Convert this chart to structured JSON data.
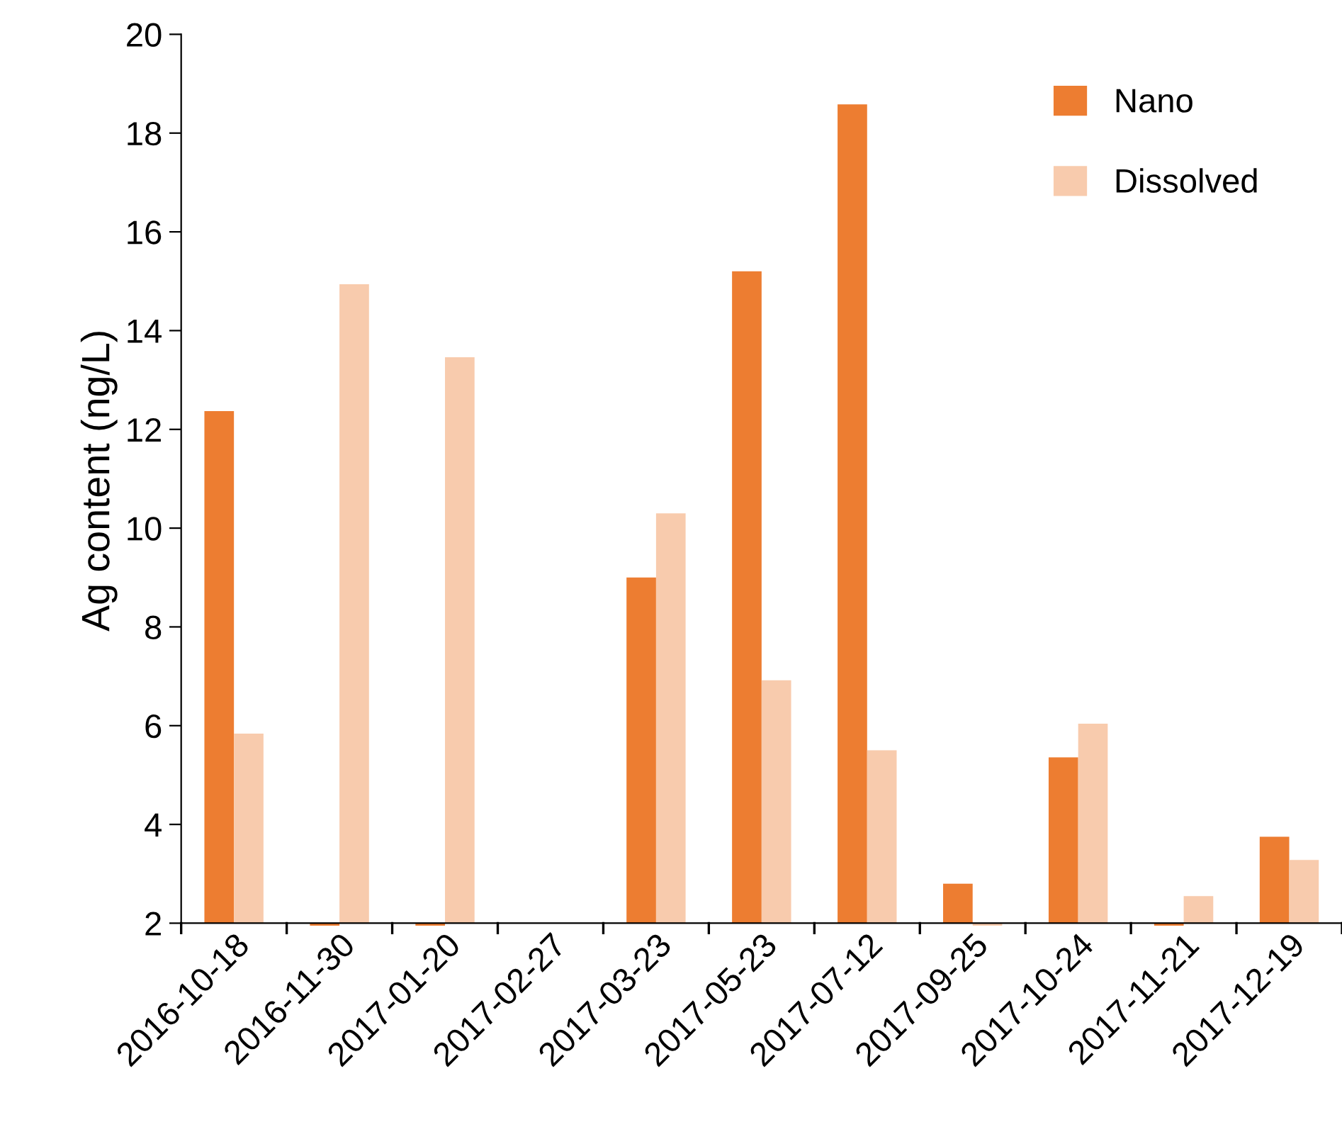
{
  "chart_data": {
    "type": "bar",
    "ylabel": "Ag content (ng/L)",
    "categories": [
      "2016-10-18",
      "2016-11-30",
      "2017-01-20",
      "2017-02-27",
      "2017-03-23",
      "2017-05-23",
      "2017-07-12",
      "2017-09-25",
      "2017-10-24",
      "2017-11-21",
      "2017-12-19"
    ],
    "series": [
      {
        "name": "Nano",
        "color": "#ed7d31",
        "values": [
          12.37,
          1.95,
          1.95,
          null,
          9.0,
          15.2,
          18.58,
          2.8,
          5.36,
          1.95,
          3.75
        ]
      },
      {
        "name": "Dissolved",
        "color": "#f8cbad",
        "values": [
          5.84,
          14.94,
          13.46,
          null,
          10.3,
          6.92,
          5.5,
          1.95,
          6.04,
          2.55,
          3.28
        ]
      }
    ],
    "ylim": [
      1.93,
      20
    ],
    "yticks": [
      2,
      4,
      6,
      8,
      10,
      12,
      14,
      16,
      18,
      20
    ],
    "grid": false,
    "legend": "top right"
  }
}
